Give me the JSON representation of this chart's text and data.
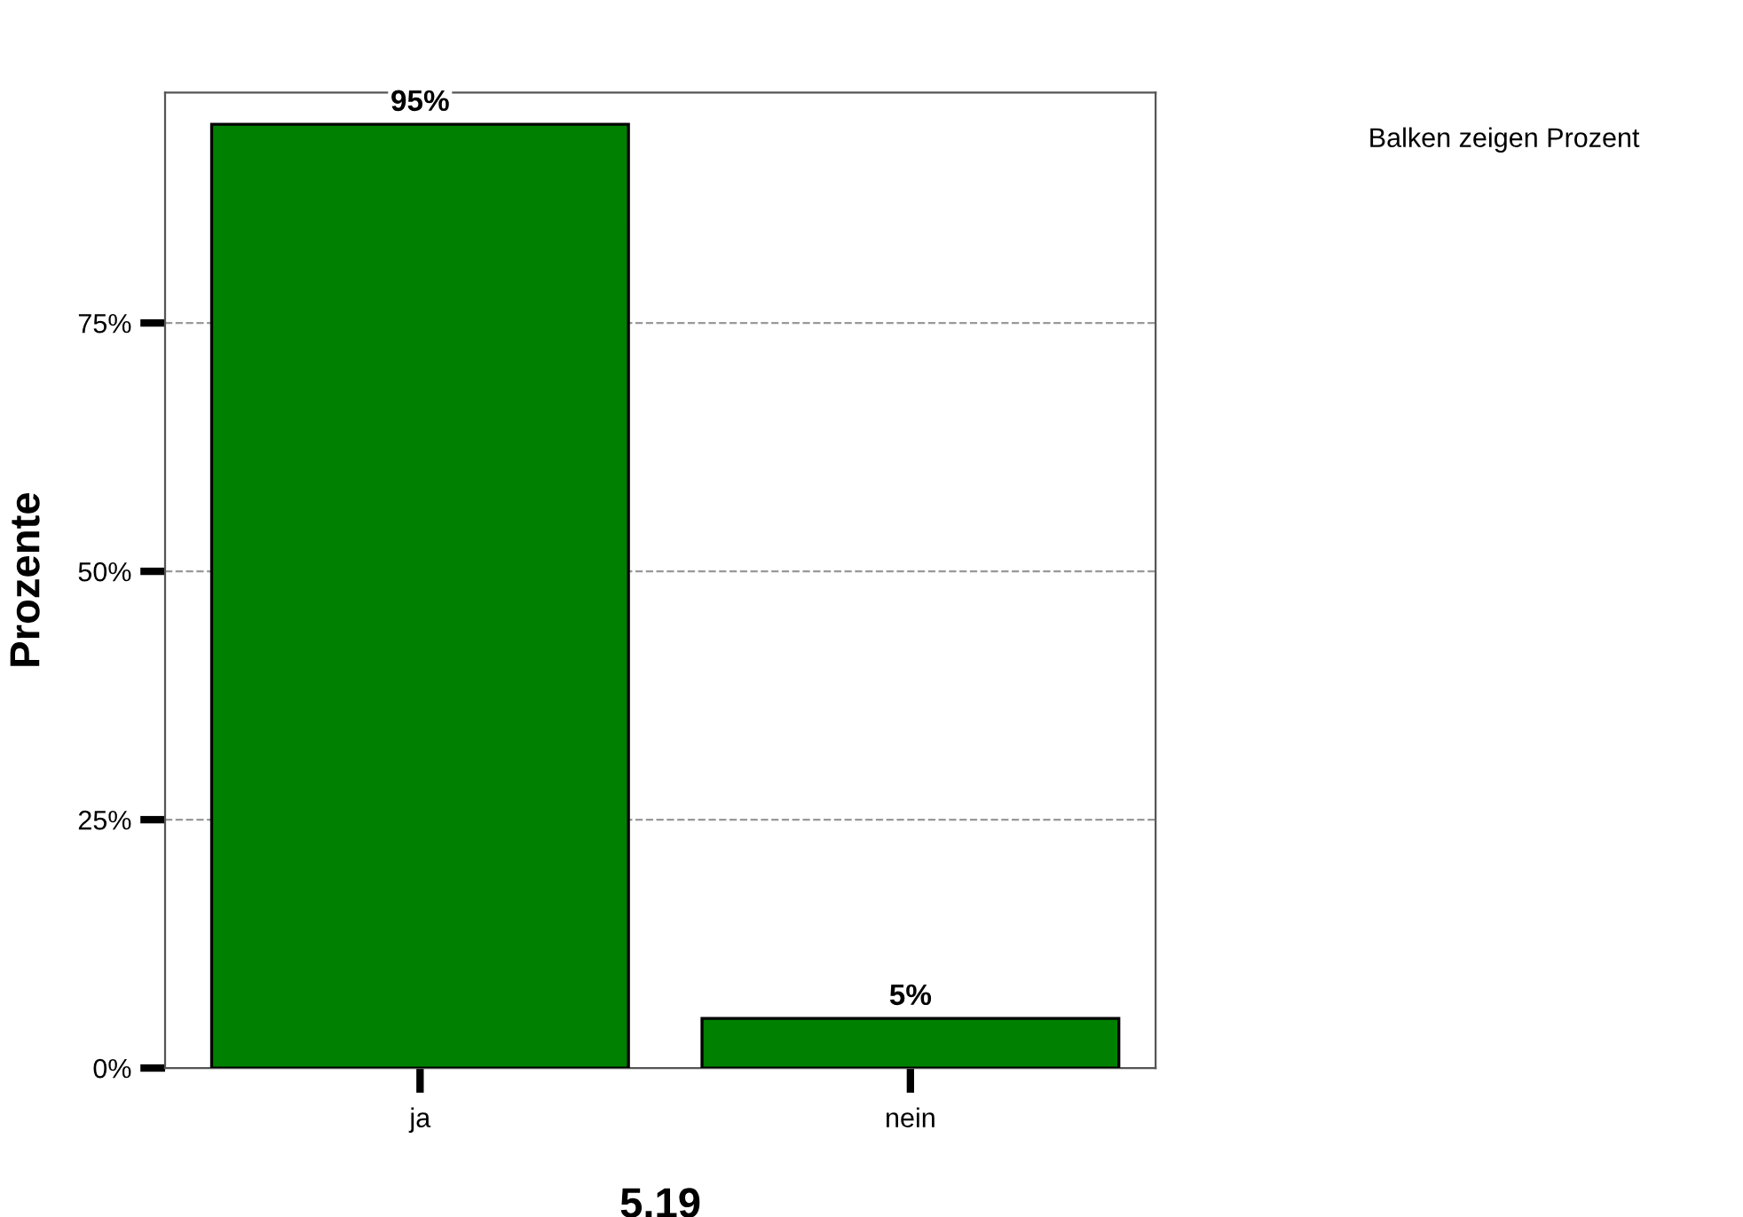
{
  "chart_data": {
    "type": "bar",
    "xlabel": "5.19",
    "ylabel": "Prozente",
    "categories": [
      "ja",
      "nein"
    ],
    "values": [
      95,
      5
    ],
    "value_labels": [
      "95%",
      "5%"
    ],
    "color": "#008000",
    "ylim": [
      0,
      98.2
    ],
    "yticks": [
      {
        "value": 0,
        "label": "0%"
      },
      {
        "value": 25,
        "label": "25%"
      },
      {
        "value": 50,
        "label": "50%"
      },
      {
        "value": 75,
        "label": "75%"
      }
    ],
    "grid": "y",
    "annotations": [
      "Balken zeigen Prozent"
    ]
  }
}
